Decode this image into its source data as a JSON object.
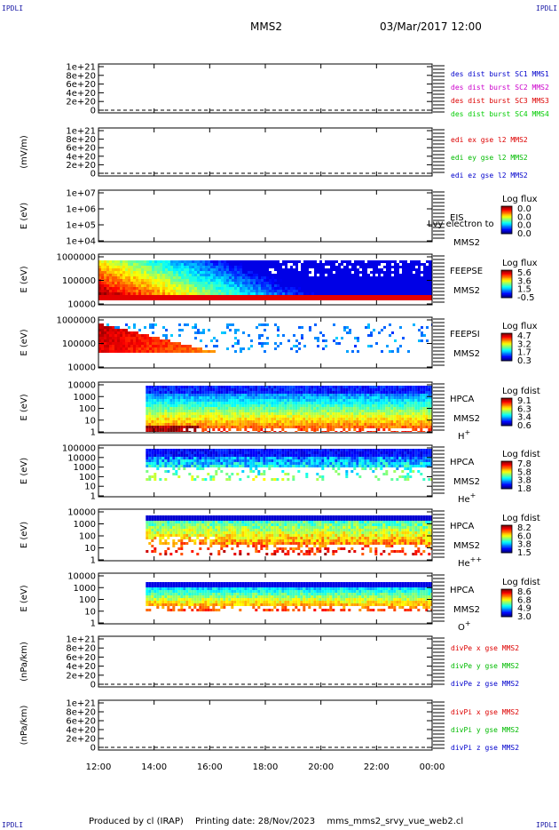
{
  "header": {
    "corner_tl": "IPDLI",
    "corner_tr": "IPDLI",
    "corner_bl": "IPDLI",
    "corner_br": "IPDLI",
    "spacecraft": "MMS2",
    "datetime": "03/Mar/2017 12:00"
  },
  "footer": {
    "produced_by": "Produced by cl (IRAP)",
    "printing_date": "Printing date: 28/Nov/2023",
    "script": "mms_mms2_srvy_vue_web2.cl"
  },
  "colors": {
    "mms1": "#0000cc",
    "mms2": "#cc00cc",
    "mms3": "#dd0000",
    "mms4": "#00cc00",
    "x": "#dd0000",
    "y": "#00bb00",
    "z": "#0000cc"
  },
  "chart_data": {
    "type": "heatmap",
    "time_axis": {
      "ticks": [
        "12:00",
        "14:00",
        "16:00",
        "18:00",
        "20:00",
        "22:00",
        "00:00"
      ],
      "range_hours": [
        12,
        24
      ]
    },
    "panels": [
      {
        "id": "des-dist",
        "kind": "line",
        "ylabel": "",
        "yticks": [
          "1e+21",
          "8e+20",
          "6e+20",
          "4e+20",
          "2e+20",
          "0"
        ],
        "legend": [
          {
            "text": "des dist burst SC1 MMS1",
            "color": "#0000cc"
          },
          {
            "text": "des dist burst SC2 MMS2",
            "color": "#cc00cc"
          },
          {
            "text": "des dist burst SC3 MMS3",
            "color": "#dd0000"
          },
          {
            "text": "des dist burst SC4 MMS4",
            "color": "#00cc00"
          }
        ],
        "zero_line": true
      },
      {
        "id": "edi",
        "kind": "line",
        "ylabel": "(mV/m)",
        "yticks": [
          "1e+21",
          "8e+20",
          "6e+20",
          "4e+20",
          "2e+20",
          "0"
        ],
        "legend": [
          {
            "text": "edi ex gse l2 MMS2",
            "color": "#dd0000"
          },
          {
            "text": "edi ey gse l2 MMS2",
            "color": "#00bb00"
          },
          {
            "text": "edi ez gse l2 MMS2",
            "color": "#0000cc"
          }
        ],
        "zero_line": true
      },
      {
        "id": "eis",
        "kind": "spectrogram",
        "ylabel": "E (eV)",
        "yticks": [
          "1e+07",
          "1e+06",
          "1e+05",
          "1e+04"
        ],
        "instrument": "EIS",
        "sc": "MMS2",
        "overflow_label": "Lvy electron to",
        "colorbar": {
          "title": "Log flux",
          "labels": [
            "0.0",
            "0.0",
            "0.0",
            "0.0"
          ]
        },
        "data_start_hour": null,
        "profile": "empty"
      },
      {
        "id": "feepse",
        "kind": "spectrogram",
        "ylabel": "E (eV)",
        "yticks": [
          "1000000",
          "100000",
          "10000"
        ],
        "instrument": "FEEPSE",
        "sc": "MMS2",
        "colorbar": {
          "title": "Log flux",
          "labels": [
            "5.6",
            "3.6",
            "1.5",
            "-0.5"
          ]
        },
        "data_start_hour": 12.0,
        "profile": "feepse"
      },
      {
        "id": "feepsi",
        "kind": "spectrogram",
        "ylabel": "E (eV)",
        "yticks": [
          "1000000",
          "100000",
          "10000"
        ],
        "instrument": "FEEPSI",
        "sc": "MMS2",
        "colorbar": {
          "title": "Log flux",
          "labels": [
            "4.7",
            "3.2",
            "1.7",
            "0.3"
          ]
        },
        "data_start_hour": 12.0,
        "profile": "feepsi"
      },
      {
        "id": "hpca-h",
        "kind": "spectrogram",
        "ylabel": "E (eV)",
        "yticks": [
          "10000",
          "1000",
          "100",
          "10",
          "1"
        ],
        "instrument": "HPCA",
        "sc": "MMS2",
        "species": "H",
        "species_sup": "+",
        "colorbar": {
          "title": "Log fdist",
          "labels": [
            "9.1",
            "6.3",
            "3.4",
            "0.6"
          ]
        },
        "data_start_hour": 13.7,
        "profile": "hplus"
      },
      {
        "id": "hpca-he",
        "kind": "spectrogram",
        "ylabel": "E (eV)",
        "yticks": [
          "100000",
          "10000",
          "1000",
          "100",
          "10",
          "1"
        ],
        "instrument": "HPCA",
        "sc": "MMS2",
        "species": "He",
        "species_sup": "+",
        "colorbar": {
          "title": "Log fdist",
          "labels": [
            "7.8",
            "5.8",
            "3.8",
            "1.8"
          ]
        },
        "data_start_hour": 13.7,
        "profile": "heplus"
      },
      {
        "id": "hpca-hepp",
        "kind": "spectrogram",
        "ylabel": "E (eV)",
        "yticks": [
          "10000",
          "1000",
          "100",
          "10",
          "1"
        ],
        "instrument": "HPCA",
        "sc": "MMS2",
        "species": "He",
        "species_sup": "++",
        "colorbar": {
          "title": "Log fdist",
          "labels": [
            "8.2",
            "6.0",
            "3.8",
            "1.5"
          ]
        },
        "data_start_hour": 13.7,
        "profile": "hepp"
      },
      {
        "id": "hpca-o",
        "kind": "spectrogram",
        "ylabel": "E (eV)",
        "yticks": [
          "10000",
          "1000",
          "100",
          "10",
          "1"
        ],
        "instrument": "HPCA",
        "sc": "MMS2",
        "species": "O",
        "species_sup": "+",
        "colorbar": {
          "title": "Log fdist",
          "labels": [
            "8.6",
            "6.8",
            "4.9",
            "3.0"
          ]
        },
        "data_start_hour": 13.7,
        "profile": "oplus"
      },
      {
        "id": "divpe",
        "kind": "line",
        "ylabel": "(nPa/km)",
        "yticks": [
          "1e+21",
          "8e+20",
          "6e+20",
          "4e+20",
          "2e+20",
          "0"
        ],
        "legend": [
          {
            "text": "divPe x gse MMS2",
            "color": "#dd0000"
          },
          {
            "text": "divPe y gse MMS2",
            "color": "#00bb00"
          },
          {
            "text": "divPe z gse MMS2",
            "color": "#0000cc"
          }
        ],
        "zero_line": true
      },
      {
        "id": "divpi",
        "kind": "line",
        "ylabel": "(nPa/km)",
        "yticks": [
          "1e+21",
          "8e+20",
          "6e+20",
          "4e+20",
          "2e+20",
          "0"
        ],
        "legend": [
          {
            "text": "divPi x gse MMS2",
            "color": "#dd0000"
          },
          {
            "text": "divPi y gse MMS2",
            "color": "#00bb00"
          },
          {
            "text": "divPi z gse MMS2",
            "color": "#0000cc"
          }
        ],
        "zero_line": true
      }
    ]
  }
}
